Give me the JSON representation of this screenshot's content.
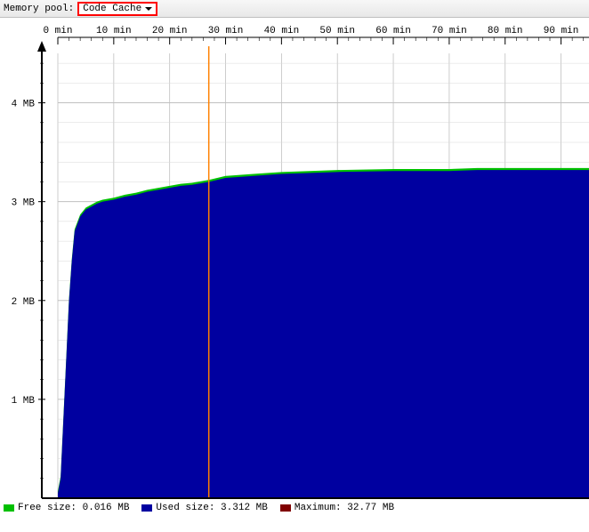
{
  "header": {
    "label": "Memory pool:",
    "dropdown": "Code Cache"
  },
  "chart": {
    "type": "area",
    "background_color": "#ffffff",
    "plot_border_color": "#000000",
    "grid_color": "#c0c0c0",
    "minor_grid_color": "#d8d8d8",
    "axis_arrow_color": "#000000",
    "marker_line_color": "#ff8000",
    "marker_x_minutes": 27,
    "x": {
      "unit": "min",
      "ticks": [
        0,
        10,
        20,
        30,
        40,
        50,
        60,
        70,
        80,
        90
      ],
      "minor_step": 2
    },
    "y": {
      "unit": "MB",
      "ticks": [
        1,
        2,
        3,
        4
      ],
      "min": 0,
      "max": 4.5,
      "minor_step": 0.2
    },
    "series": {
      "free": {
        "color": "#00c000",
        "label": "Free size",
        "value": "0.016 MB"
      },
      "used": {
        "color": "#0000a0",
        "label": "Used size",
        "value": "3.312 MB"
      },
      "maximum": {
        "color": "#800000",
        "label": "Maximum",
        "value": "32.77 MB"
      }
    },
    "used_curve": [
      [
        0,
        0.05
      ],
      [
        0.5,
        0.2
      ],
      [
        1,
        0.8
      ],
      [
        1.5,
        1.4
      ],
      [
        2,
        2.0
      ],
      [
        2.5,
        2.4
      ],
      [
        3,
        2.7
      ],
      [
        4,
        2.85
      ],
      [
        5,
        2.92
      ],
      [
        6,
        2.95
      ],
      [
        7,
        2.98
      ],
      [
        8,
        3.0
      ],
      [
        10,
        3.02
      ],
      [
        12,
        3.05
      ],
      [
        14,
        3.07
      ],
      [
        16,
        3.1
      ],
      [
        18,
        3.12
      ],
      [
        20,
        3.14
      ],
      [
        22,
        3.16
      ],
      [
        24,
        3.17
      ],
      [
        27,
        3.2
      ],
      [
        30,
        3.24
      ],
      [
        35,
        3.26
      ],
      [
        40,
        3.28
      ],
      [
        50,
        3.3
      ],
      [
        60,
        3.31
      ],
      [
        70,
        3.31
      ],
      [
        75,
        3.32
      ],
      [
        90,
        3.32
      ],
      [
        95,
        3.32
      ]
    ],
    "free_offset": 0.02
  }
}
